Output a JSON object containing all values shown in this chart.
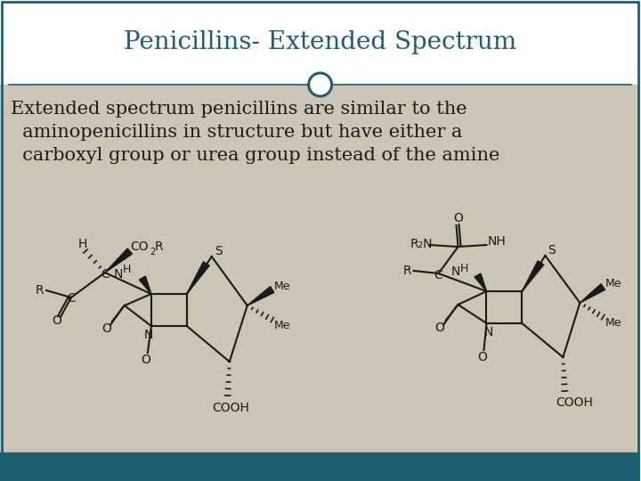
{
  "title": "Penicillins- Extended Spectrum",
  "title_color": "#1e5f74",
  "title_fontsize": 20,
  "body_text_line1": "Extended spectrum penicillins are similar to the",
  "body_text_line2": "  aminopenicillins in structure but have either a",
  "body_text_line3": "  carboxyl group or urea group instead of the amine",
  "body_color": "#1a1a1a",
  "body_fontsize": 15,
  "bg_top": "#ffffff",
  "bg_bottom": "#ccc4b4",
  "footer_color": "#1e5f74",
  "border_color": "#1e5f74",
  "circle_color": "#1e5f74"
}
